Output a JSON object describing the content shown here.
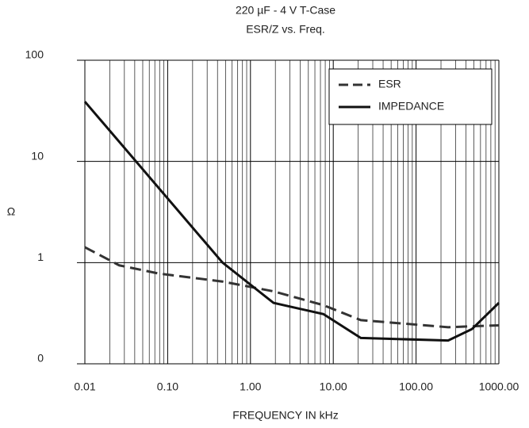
{
  "chart_data": {
    "type": "line",
    "title": "220 µF - 4 V T-Case",
    "subtitle": "ESR/Z vs. Freq.",
    "x_label": "FREQUENCY IN kHz",
    "y_label": "Ω",
    "log_x": true,
    "log_y": true,
    "grid": true,
    "legend": "upper right",
    "xlim": [
      0.01,
      1000
    ],
    "xticks": [
      {
        "value": 0.01,
        "label": "0.01"
      },
      {
        "value": 0.1,
        "label": "0.10"
      },
      {
        "value": 1,
        "label": "1.00"
      },
      {
        "value": 10,
        "label": "10.00"
      },
      {
        "value": 100,
        "label": "100.00"
      },
      {
        "value": 1000,
        "label": "1000.00"
      }
    ],
    "ylim": [
      0.1,
      100
    ],
    "yticks": [
      {
        "value": 0.1,
        "label": "0"
      },
      1,
      10,
      100
    ],
    "series": [
      {
        "name": "ESR",
        "color": "#333333",
        "dash": true,
        "x": [
          0.01,
          0.026,
          0.078,
          0.46,
          1.9,
          7.6,
          21.5,
          244,
          1000
        ],
        "values": [
          1.42,
          0.94,
          0.78,
          0.65,
          0.52,
          0.38,
          0.27,
          0.23,
          0.24
        ]
      },
      {
        "name": "IMPEDANCE",
        "color": "#111111",
        "dash": false,
        "x": [
          0.01,
          0.46,
          1.9,
          7.6,
          21.5,
          244,
          472,
          1000
        ],
        "values": [
          39,
          1.0,
          0.4,
          0.31,
          0.18,
          0.17,
          0.22,
          0.4
        ]
      }
    ]
  }
}
